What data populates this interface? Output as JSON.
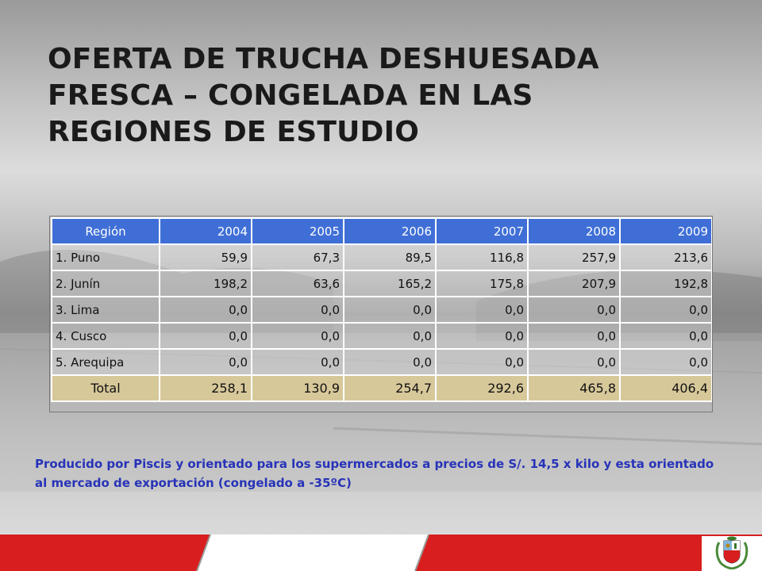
{
  "slide": {
    "title": "OFERTA DE TRUCHA DESHUESADA FRESCA – CONGELADA EN LAS REGIONES DE ESTUDIO",
    "note": "Producido por Piscis y orientado para los supermercados a precios de S/. 14,5 x kilo y esta orientado al mercado de exportación (congelado a -35ºC)"
  },
  "table": {
    "headers": [
      "Región",
      "2004",
      "2005",
      "2006",
      "2007",
      "2008",
      "2009"
    ],
    "rows": [
      {
        "region": "1.  Puno",
        "values": [
          "59,9",
          "67,3",
          "89,5",
          "116,8",
          "257,9",
          "213,6"
        ]
      },
      {
        "region": "2.  Junín",
        "values": [
          "198,2",
          "63,6",
          "165,2",
          "175,8",
          "207,9",
          "192,8"
        ]
      },
      {
        "region": "3.  Lima",
        "values": [
          "0,0",
          "0,0",
          "0,0",
          "0,0",
          "0,0",
          "0,0"
        ]
      },
      {
        "region": "4.  Cusco",
        "values": [
          "0,0",
          "0,0",
          "0,0",
          "0,0",
          "0,0",
          "0,0"
        ]
      },
      {
        "region": "5.  Arequipa",
        "values": [
          "0,0",
          "0,0",
          "0,0",
          "0,0",
          "0,0",
          "0,0"
        ]
      }
    ],
    "total": {
      "label": "Total",
      "values": [
        "258,1",
        "130,9",
        "254,7",
        "292,6",
        "465,8",
        "406,4"
      ]
    }
  },
  "colors": {
    "header_bg": "#3f6fd6",
    "total_bg": "#d7c89a",
    "note_text": "#2733b8",
    "footer_red": "#d81e1e"
  },
  "icons": {
    "emblem": "peru-coat-of-arms-icon"
  }
}
